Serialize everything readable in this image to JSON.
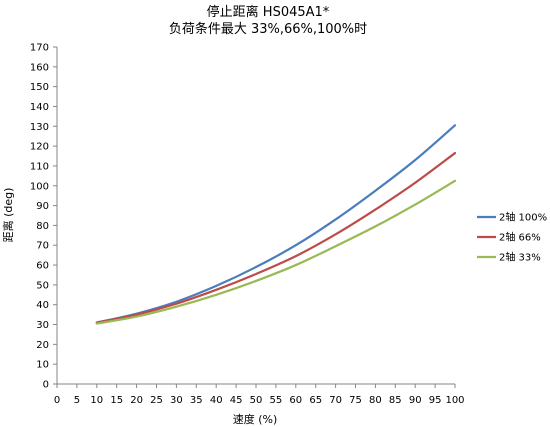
{
  "chart_data": {
    "type": "line",
    "title": "停止距离 HS045A1*",
    "subtitle": "负荷条件最大 33%,66%,100%时",
    "xlabel": "速度 (%)",
    "ylabel": "距离 (deg)",
    "xlim": [
      0,
      100
    ],
    "ylim": [
      0,
      170
    ],
    "x_ticks": [
      "0",
      "5",
      "10",
      "15",
      "20",
      "25",
      "30",
      "35",
      "40",
      "45",
      "50",
      "55",
      "60",
      "65",
      "70",
      "75",
      "80",
      "85",
      "90",
      "95",
      "100"
    ],
    "y_ticks": [
      "0",
      "10",
      "20",
      "30",
      "40",
      "50",
      "60",
      "70",
      "80",
      "90",
      "100",
      "110",
      "120",
      "130",
      "140",
      "150",
      "160",
      "170"
    ],
    "grid": false,
    "legend_position": "right",
    "x": [
      10,
      20,
      30,
      40,
      50,
      60,
      70,
      80,
      90,
      100
    ],
    "series": [
      {
        "name": "2轴 100%",
        "color": "#4a7ebb",
        "values": [
          31,
          35.5,
          41.5,
          49.5,
          59,
          70,
          83,
          97.5,
          113,
          130.5
        ]
      },
      {
        "name": "2轴 66%",
        "color": "#be4b48",
        "values": [
          31,
          35,
          40.5,
          47.5,
          55.5,
          64.5,
          75.5,
          88,
          101.5,
          116.5
        ]
      },
      {
        "name": "2轴 33%",
        "color": "#98b954",
        "values": [
          30.5,
          34,
          39,
          45,
          52,
          60,
          69.5,
          79.5,
          90.5,
          102.5
        ]
      }
    ]
  }
}
